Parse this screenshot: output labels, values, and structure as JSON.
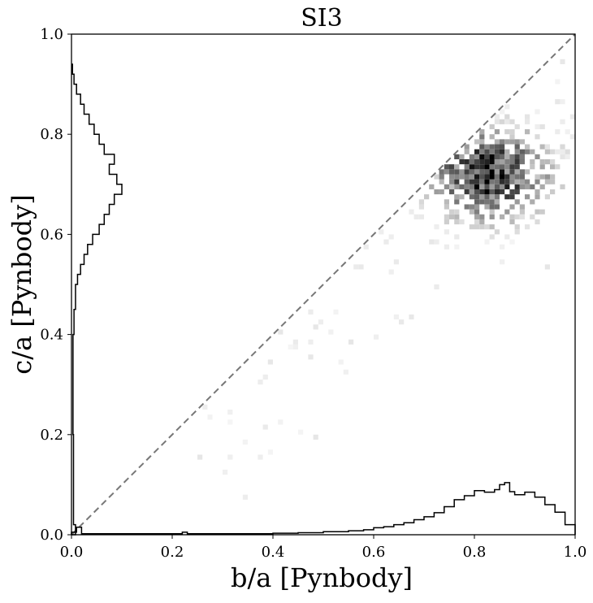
{
  "chart_data": {
    "type": "heatmap",
    "title": "SI3",
    "xlabel": "b/a [Pynbody]",
    "ylabel": "c/a [Pynbody]",
    "xlim": [
      0.0,
      1.0
    ],
    "ylim": [
      0.0,
      1.0
    ],
    "x_ticks": [
      "0.0",
      "0.2",
      "0.4",
      "0.6",
      "0.8",
      "1.0"
    ],
    "y_ticks": [
      "0.0",
      "0.2",
      "0.4",
      "0.6",
      "0.8",
      "1.0"
    ],
    "grid": false,
    "legend": "none",
    "colormap": "Greys",
    "diagonal": {
      "x": [
        0.0,
        1.0
      ],
      "y": [
        0.0,
        1.0
      ],
      "style": "dashed",
      "color": "#777777"
    },
    "heatmap_density": {
      "description": "2D histogram of (b/a, c/a) with 100x100 bins; density concentrated below the diagonal",
      "peak_center": {
        "x": 0.83,
        "y": 0.72
      },
      "peak_spread": {
        "x": 0.08,
        "y": 0.06
      },
      "bin_width": 0.01
    },
    "marginal_x": {
      "description": "Histogram of b/a drawn along the bottom axis (heights in c/a units)",
      "bins": [
        0.0,
        0.01,
        0.02,
        0.1,
        0.2,
        0.22,
        0.23,
        0.3,
        0.4,
        0.45,
        0.5,
        0.55,
        0.58,
        0.6,
        0.62,
        0.64,
        0.66,
        0.68,
        0.7,
        0.72,
        0.74,
        0.76,
        0.78,
        0.8,
        0.82,
        0.84,
        0.85,
        0.86,
        0.87,
        0.88,
        0.9,
        0.92,
        0.94,
        0.96,
        0.98,
        1.0
      ],
      "heights": [
        0.005,
        0.015,
        0.002,
        0.002,
        0.002,
        0.005,
        0.002,
        0.002,
        0.003,
        0.004,
        0.006,
        0.008,
        0.01,
        0.014,
        0.016,
        0.02,
        0.024,
        0.03,
        0.036,
        0.044,
        0.056,
        0.07,
        0.078,
        0.088,
        0.085,
        0.09,
        0.1,
        0.104,
        0.086,
        0.08,
        0.085,
        0.075,
        0.06,
        0.045,
        0.02
      ]
    },
    "marginal_y": {
      "description": "Histogram of c/a drawn along the left axis (widths in b/a units)",
      "bins": [
        0.0,
        0.02,
        0.2,
        0.4,
        0.45,
        0.5,
        0.52,
        0.54,
        0.56,
        0.58,
        0.6,
        0.62,
        0.64,
        0.66,
        0.68,
        0.7,
        0.72,
        0.74,
        0.76,
        0.78,
        0.8,
        0.82,
        0.84,
        0.86,
        0.88,
        0.9,
        0.92,
        0.94
      ],
      "widths": [
        0.008,
        0.004,
        0.003,
        0.005,
        0.008,
        0.012,
        0.018,
        0.025,
        0.032,
        0.042,
        0.055,
        0.065,
        0.075,
        0.085,
        0.1,
        0.09,
        0.075,
        0.085,
        0.065,
        0.055,
        0.045,
        0.035,
        0.025,
        0.018,
        0.01,
        0.005,
        0.002
      ]
    }
  }
}
